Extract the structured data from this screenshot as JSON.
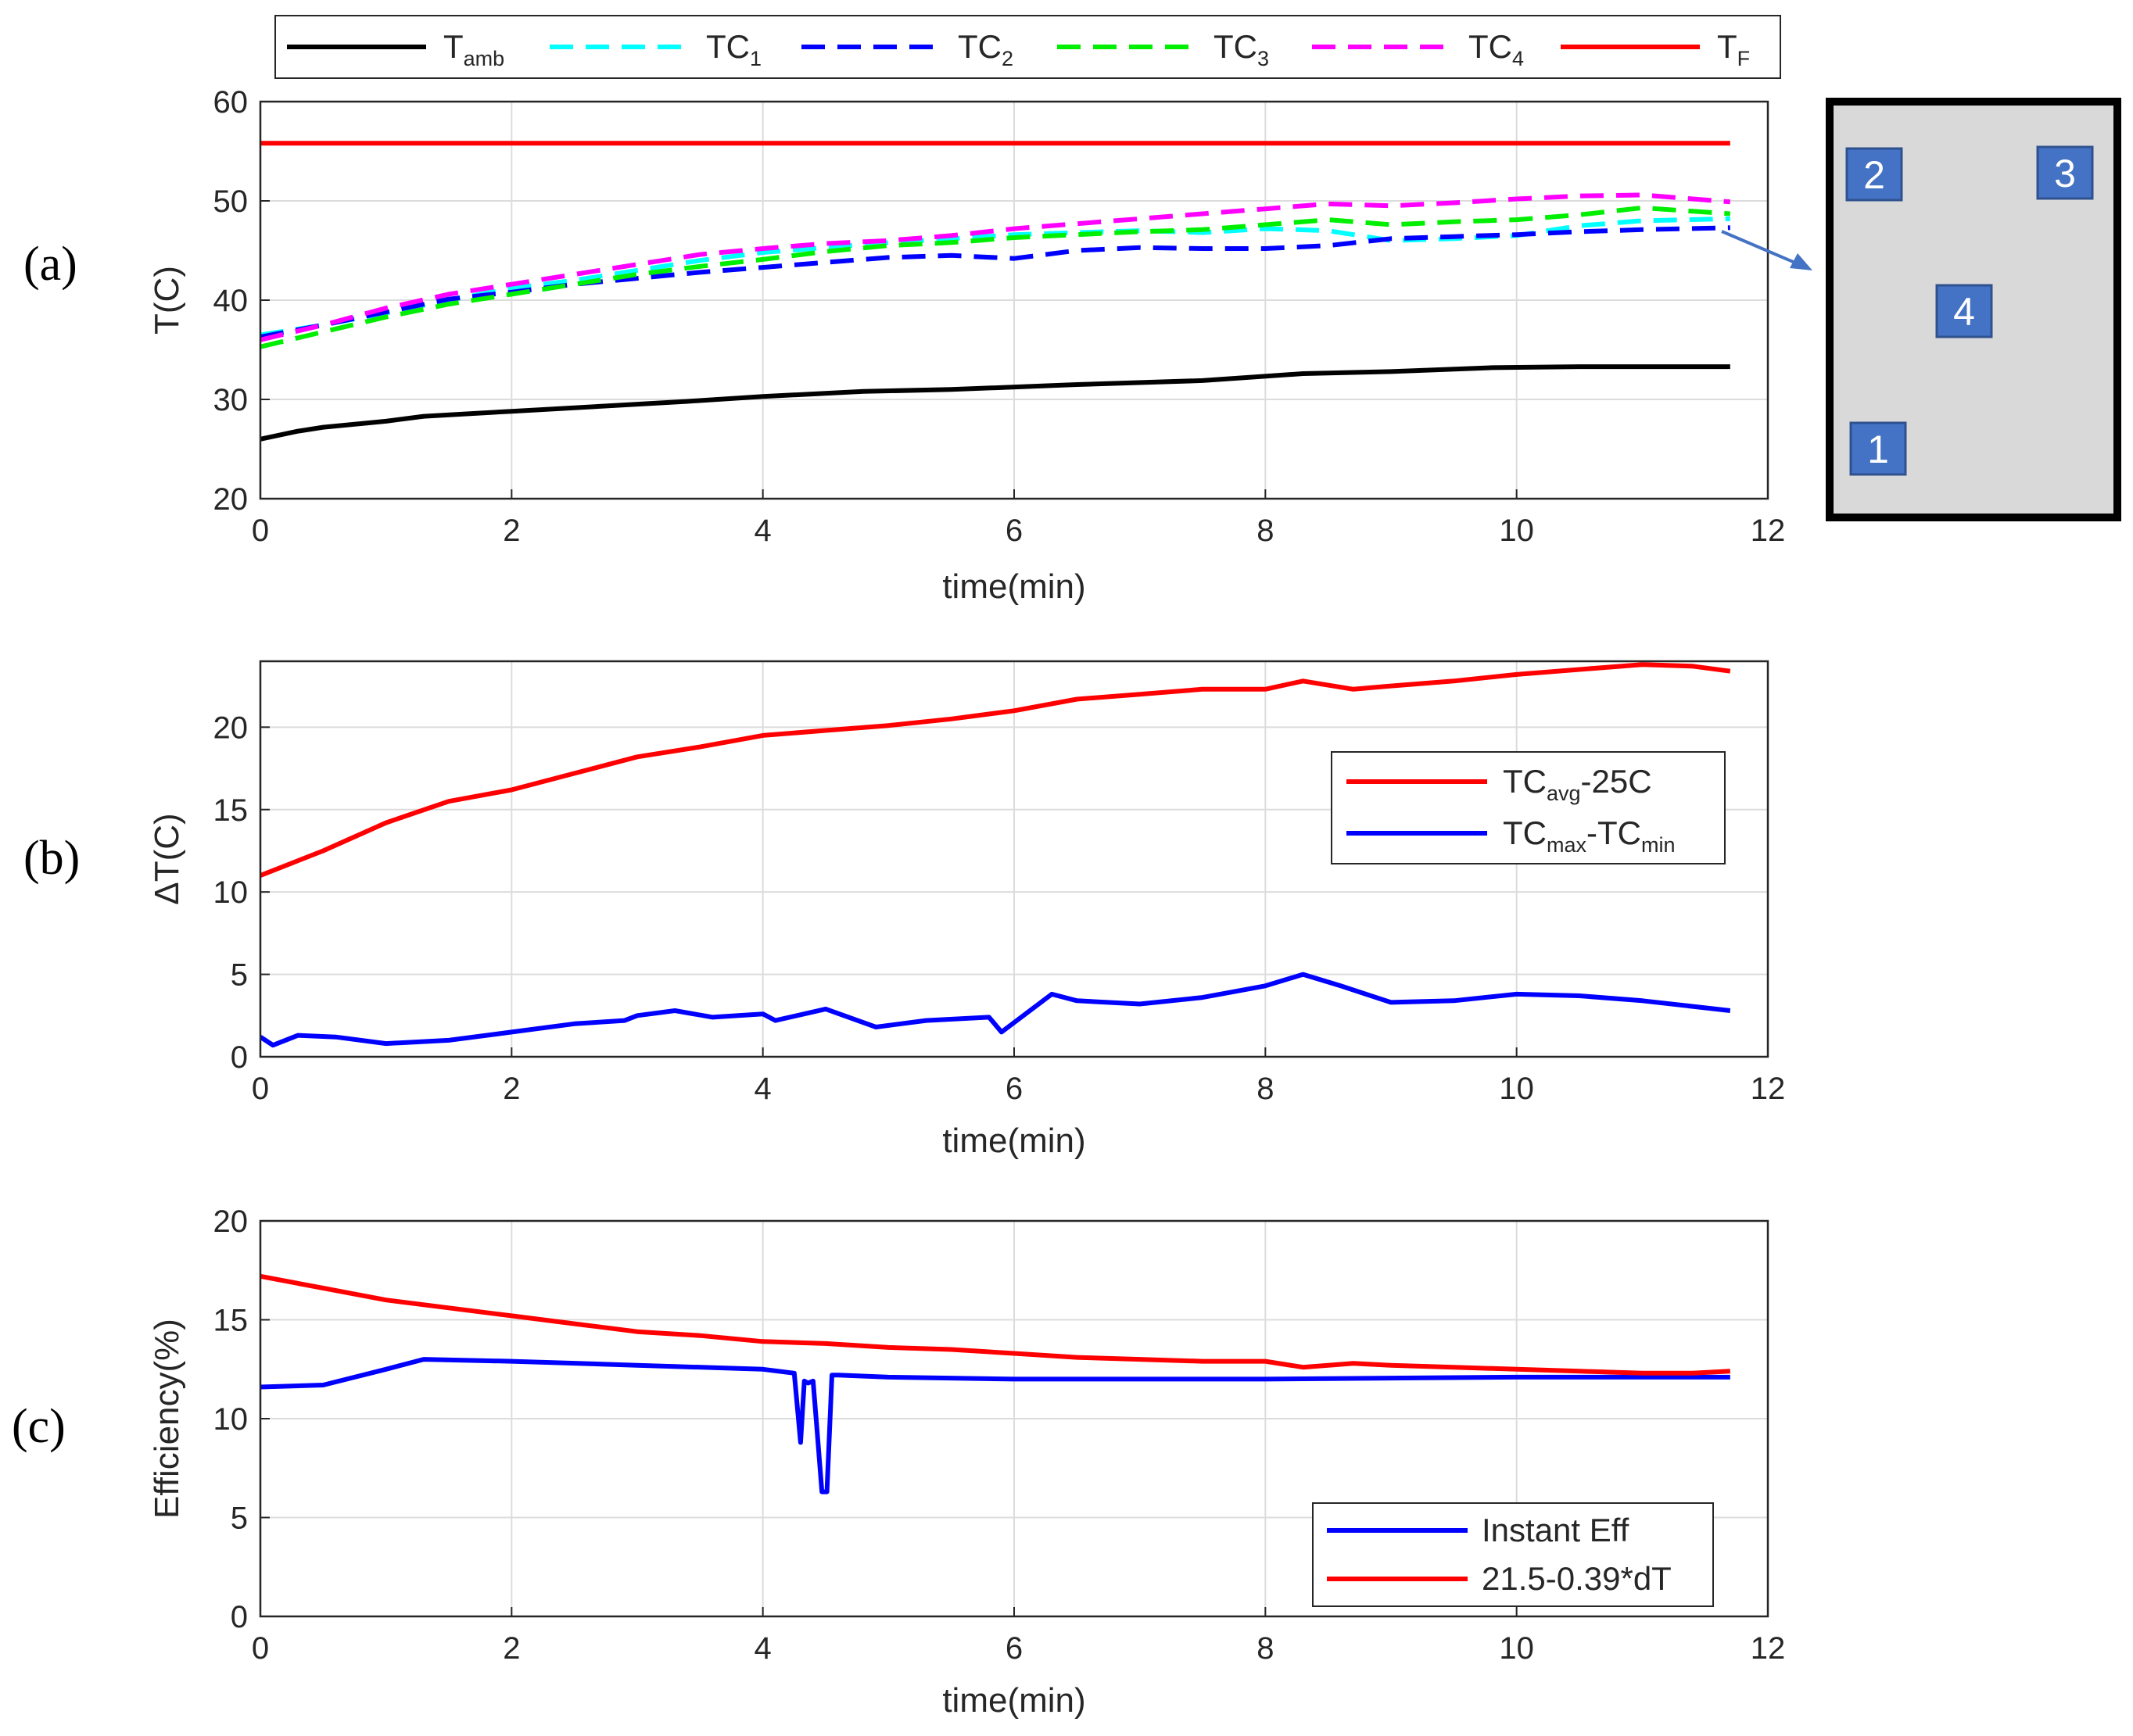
{
  "chart_data": [
    {
      "id": "a",
      "panel_label": "(a)",
      "type": "line",
      "xlabel": "time(min)",
      "ylabel": "T(C)",
      "xlim": [
        0,
        12
      ],
      "ylim": [
        20,
        60
      ],
      "xticks": [
        "0",
        "2",
        "4",
        "6",
        "8",
        "10",
        "12"
      ],
      "yticks": [
        "20",
        "30",
        "40",
        "50",
        "60"
      ],
      "legend_position": "top",
      "series": [
        {
          "key": "Tamb",
          "name": "T",
          "sub": "amb",
          "color": "#000000",
          "dash": false,
          "x": [
            0,
            0.3,
            0.5,
            1,
            1.3,
            2,
            2.7,
            3.4,
            4,
            4.8,
            5.5,
            6.5,
            7.5,
            8.3,
            9,
            9.8,
            10.5,
            11.7
          ],
          "y": [
            26,
            26.8,
            27.2,
            27.8,
            28.3,
            28.8,
            29.3,
            29.8,
            30.3,
            30.8,
            31,
            31.5,
            31.9,
            32.6,
            32.8,
            33.2,
            33.3,
            33.3
          ]
        },
        {
          "key": "TC1",
          "name": "TC",
          "sub": "1",
          "color": "#00ffff",
          "dash": true,
          "x": [
            0,
            0.5,
            1,
            1.5,
            2,
            2.5,
            3,
            3.5,
            4,
            4.5,
            5,
            5.5,
            6,
            6.5,
            7,
            7.5,
            8,
            8.5,
            9,
            9.5,
            10,
            10.5,
            11,
            11.7
          ],
          "y": [
            36.5,
            37.5,
            38.7,
            40,
            41.2,
            42,
            43,
            44,
            44.8,
            45.3,
            45.8,
            46.2,
            46.6,
            46.8,
            47,
            46.8,
            47.2,
            47,
            46,
            46.2,
            46.5,
            47.5,
            48,
            48.2
          ]
        },
        {
          "key": "TC2",
          "name": "TC",
          "sub": "2",
          "color": "#0000ff",
          "dash": true,
          "x": [
            0,
            0.5,
            1,
            1.5,
            2,
            2.5,
            3,
            3.5,
            4,
            4.5,
            5,
            5.5,
            6,
            6.5,
            7,
            7.5,
            8,
            8.5,
            9,
            9.5,
            10,
            10.5,
            11,
            11.7
          ],
          "y": [
            36.3,
            37.5,
            38.8,
            40.1,
            40.8,
            41.6,
            42.2,
            42.8,
            43.3,
            43.8,
            44.3,
            44.5,
            44.2,
            45,
            45.3,
            45.2,
            45.2,
            45.5,
            46.2,
            46.4,
            46.6,
            46.9,
            47.1,
            47.3
          ]
        },
        {
          "key": "TC3",
          "name": "TC",
          "sub": "3",
          "color": "#00ee00",
          "dash": true,
          "x": [
            0,
            0.5,
            1,
            1.5,
            2,
            2.5,
            3,
            3.5,
            4,
            4.5,
            5,
            5.5,
            6,
            6.5,
            7,
            7.5,
            8,
            8.5,
            9,
            9.5,
            10,
            10.5,
            11,
            11.7
          ],
          "y": [
            35.3,
            36.8,
            38.3,
            39.6,
            40.6,
            41.6,
            42.6,
            43.4,
            44.1,
            44.9,
            45.5,
            45.8,
            46.3,
            46.6,
            46.9,
            47.1,
            47.6,
            48.1,
            47.6,
            47.9,
            48.1,
            48.6,
            49.3,
            48.7
          ]
        },
        {
          "key": "TC4",
          "name": "TC",
          "sub": "4",
          "color": "#ff00ff",
          "dash": true,
          "x": [
            0,
            0.5,
            1,
            1.5,
            2,
            2.5,
            3,
            3.5,
            4,
            4.5,
            5,
            5.5,
            6,
            6.5,
            7,
            7.5,
            8,
            8.5,
            9,
            9.5,
            10,
            10.5,
            11,
            11.7
          ],
          "y": [
            36,
            37.5,
            39.2,
            40.6,
            41.6,
            42.6,
            43.6,
            44.6,
            45.2,
            45.7,
            46,
            46.5,
            47.2,
            47.7,
            48.2,
            48.7,
            49.2,
            49.7,
            49.5,
            49.8,
            50.2,
            50.5,
            50.6,
            49.9
          ]
        },
        {
          "key": "TF",
          "name": "T",
          "sub": "F",
          "color": "#ff0000",
          "dash": false,
          "x": [
            0,
            11.7
          ],
          "y": [
            55.8,
            55.8
          ]
        }
      ]
    },
    {
      "id": "b",
      "panel_label": "(b)",
      "type": "line",
      "xlabel": "time(min)",
      "ylabel": "ΔT(C)",
      "xlim": [
        0,
        12
      ],
      "ylim": [
        0,
        24
      ],
      "xticks": [
        "0",
        "2",
        "4",
        "6",
        "8",
        "10",
        "12"
      ],
      "yticks": [
        "0",
        "5",
        "10",
        "15",
        "20"
      ],
      "legend_position": "right",
      "series": [
        {
          "key": "avg",
          "name": "TC",
          "sub": "avg",
          "suffix": "-25C",
          "color": "#ff0000",
          "dash": false,
          "x": [
            0,
            0.5,
            1,
            1.5,
            2,
            2.5,
            3,
            3.5,
            4,
            4.5,
            5,
            5.5,
            6,
            6.5,
            7,
            7.5,
            8,
            8.3,
            8.7,
            9,
            9.5,
            10,
            10.5,
            11,
            11.4,
            11.7
          ],
          "y": [
            11,
            12.5,
            14.2,
            15.5,
            16.2,
            17.2,
            18.2,
            18.8,
            19.5,
            19.8,
            20.1,
            20.5,
            21,
            21.7,
            22,
            22.3,
            22.3,
            22.8,
            22.3,
            22.5,
            22.8,
            23.2,
            23.5,
            23.8,
            23.7,
            23.4
          ]
        },
        {
          "key": "range",
          "name": "TC",
          "sub": "max",
          "mid": "-TC",
          "sub2": "min",
          "color": "#0000ff",
          "dash": false,
          "x": [
            0,
            0.1,
            0.3,
            0.6,
            1,
            1.5,
            2,
            2.5,
            2.9,
            3,
            3.3,
            3.6,
            4,
            4.1,
            4.5,
            4.9,
            5.3,
            5.8,
            5.9,
            6.3,
            6.5,
            7,
            7.5,
            8,
            8.3,
            8.6,
            9,
            9.5,
            10,
            10.5,
            11,
            11.7
          ],
          "y": [
            1.2,
            0.7,
            1.3,
            1.2,
            0.8,
            1,
            1.5,
            2,
            2.2,
            2.5,
            2.8,
            2.4,
            2.6,
            2.2,
            2.9,
            1.8,
            2.2,
            2.4,
            1.5,
            3.8,
            3.4,
            3.2,
            3.6,
            4.3,
            5,
            4.3,
            3.3,
            3.4,
            3.8,
            3.7,
            3.4,
            2.8
          ]
        }
      ]
    },
    {
      "id": "c",
      "panel_label": "(c)",
      "type": "line",
      "xlabel": "time(min)",
      "ylabel": "Efficiency(%)",
      "xlim": [
        0,
        12
      ],
      "ylim": [
        0,
        20
      ],
      "xticks": [
        "0",
        "2",
        "4",
        "6",
        "8",
        "10",
        "12"
      ],
      "yticks": [
        "0",
        "5",
        "10",
        "15",
        "20"
      ],
      "legend_position": "bottom-right",
      "series": [
        {
          "key": "inst",
          "name": "Instant Eff",
          "color": "#0000ff",
          "dash": false,
          "x": [
            0,
            0.5,
            1,
            1.3,
            2,
            3,
            4,
            4.25,
            4.3,
            4.33,
            4.36,
            4.4,
            4.43,
            4.47,
            4.51,
            4.55,
            4.6,
            5,
            6,
            8,
            10,
            11.7
          ],
          "y": [
            11.6,
            11.7,
            12.5,
            13,
            12.9,
            12.7,
            12.5,
            12.3,
            8.8,
            11.9,
            11.8,
            11.9,
            9.5,
            6.3,
            6.3,
            12.2,
            12.2,
            12.1,
            12,
            12,
            12.1,
            12.1
          ]
        },
        {
          "key": "model",
          "name": "21.5-0.39*dT",
          "color": "#ff0000",
          "dash": false,
          "x": [
            0,
            0.5,
            1,
            1.5,
            2,
            2.5,
            3,
            3.5,
            4,
            4.5,
            5,
            5.5,
            6,
            6.5,
            7,
            7.5,
            8,
            8.3,
            8.7,
            9,
            9.5,
            10,
            10.5,
            11,
            11.4,
            11.7
          ],
          "y": [
            17.2,
            16.6,
            16,
            15.6,
            15.2,
            14.8,
            14.4,
            14.2,
            13.9,
            13.8,
            13.6,
            13.5,
            13.3,
            13.1,
            13,
            12.9,
            12.9,
            12.6,
            12.8,
            12.7,
            12.6,
            12.5,
            12.4,
            12.3,
            12.3,
            12.4
          ]
        }
      ]
    }
  ],
  "inset": {
    "labels": [
      "1",
      "2",
      "3",
      "4"
    ]
  }
}
